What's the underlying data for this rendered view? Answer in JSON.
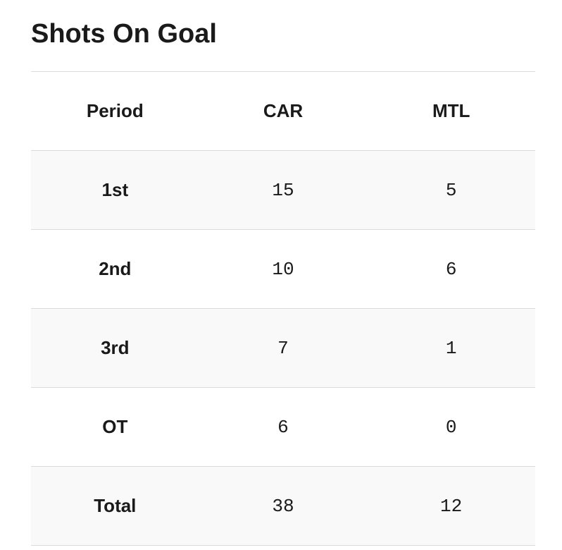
{
  "title": "Shots On Goal",
  "table": {
    "header": [
      "Period",
      "CAR",
      "MTL"
    ],
    "rows": [
      [
        "1st",
        15,
        5
      ],
      [
        "2nd",
        10,
        6
      ],
      [
        "3rd",
        7,
        1
      ],
      [
        "OT",
        6,
        0
      ],
      [
        "Total",
        38,
        12
      ]
    ]
  }
}
